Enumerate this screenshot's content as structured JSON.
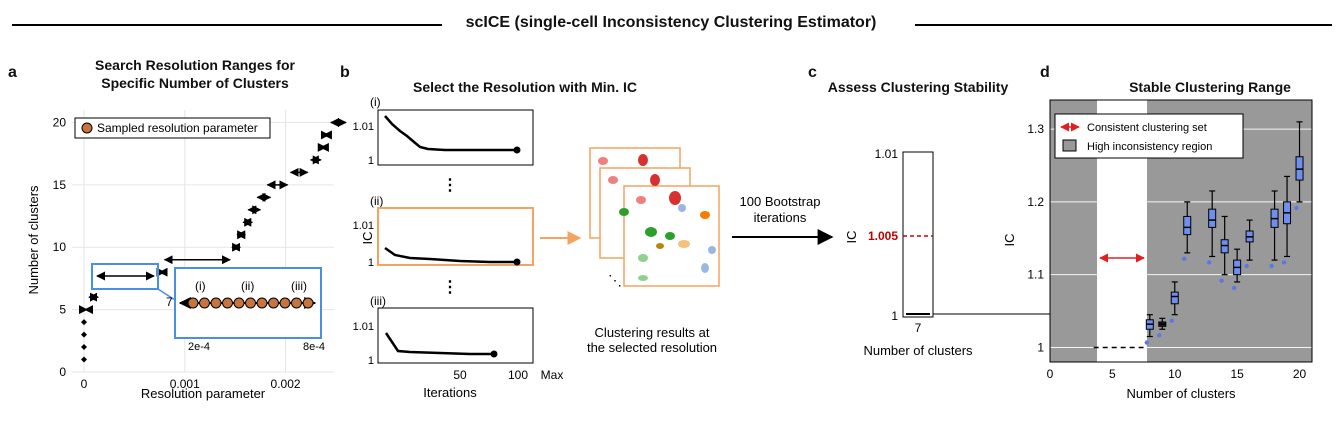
{
  "header": {
    "title": "scICE (single-cell Inconsistency Clustering Estimator)"
  },
  "panel_a": {
    "letter": "a",
    "title_line1": "Search Resolution Ranges for",
    "title_line2": "Specific Number of Clusters",
    "legend": "Sampled resolution parameter",
    "xlabel": "Resolution parameter",
    "ylabel": "Number of clusters",
    "xticks": [
      "0",
      "0.001",
      "0.002"
    ],
    "yticks": [
      "0",
      "5",
      "10",
      "15",
      "20"
    ],
    "inset": {
      "y_label": "7",
      "labels": [
        "(i)",
        "(ii)",
        "(iii)"
      ],
      "x_left": "2e-4",
      "x_right": "8e-4"
    },
    "chart_data": {
      "type": "scatter",
      "xlabel": "Resolution parameter",
      "ylabel": "Number of clusters",
      "xlim": [
        0,
        0.0026
      ],
      "ylim": [
        0,
        21
      ],
      "ranges": [
        {
          "k": 1,
          "x0": 0.0,
          "x1": 0.0
        },
        {
          "k": 2,
          "x0": 0.0,
          "x1": 0.0
        },
        {
          "k": 3,
          "x0": 0.0,
          "x1": 0.0
        },
        {
          "k": 4,
          "x0": 0.0,
          "x1": 0.0
        },
        {
          "k": 5,
          "x0": 1e-05,
          "x1": 3e-05
        },
        {
          "k": 6,
          "x0": 5e-05,
          "x1": 0.00014
        },
        {
          "k": 7,
          "x0": 0.0002,
          "x1": 0.0008
        },
        {
          "k": 8,
          "x0": 0.00075,
          "x1": 0.0008
        },
        {
          "k": 9,
          "x0": 0.0008,
          "x1": 0.00145
        },
        {
          "k": 10,
          "x0": 0.00147,
          "x1": 0.00155
        },
        {
          "k": 11,
          "x0": 0.00152,
          "x1": 0.0016
        },
        {
          "k": 12,
          "x0": 0.00158,
          "x1": 0.00167
        },
        {
          "k": 13,
          "x0": 0.00163,
          "x1": 0.00175
        },
        {
          "k": 14,
          "x0": 0.00172,
          "x1": 0.00185
        },
        {
          "k": 15,
          "x0": 0.00182,
          "x1": 0.00202
        },
        {
          "k": 16,
          "x0": 0.00205,
          "x1": 0.00222
        },
        {
          "k": 17,
          "x0": 0.00225,
          "x1": 0.00235
        },
        {
          "k": 18,
          "x0": 0.00235,
          "x1": 0.0024
        },
        {
          "k": 19,
          "x0": 0.00238,
          "x1": 0.00243
        },
        {
          "k": 20,
          "x0": 0.00245,
          "x1": 0.0026
        }
      ]
    }
  },
  "panel_b": {
    "letter": "b",
    "title": "Select the Resolution with Min. IC",
    "ylabel": "IC",
    "xlabel": "Iterations",
    "subplots": [
      "(i)",
      "(ii)",
      "(iii)"
    ],
    "yticks_i": [
      "1.01",
      "1"
    ],
    "yticks_ii": [
      "1.01",
      "1"
    ],
    "yticks_iii": [
      "1.01",
      "1"
    ],
    "xticks": [
      "50",
      "100",
      "Max"
    ],
    "caption_line1": "Clustering results at",
    "caption_line2": "the selected resolution",
    "arrow_line1": "100 Bootstrap",
    "arrow_line2": "iterations",
    "accent": "#f4a460"
  },
  "panel_c": {
    "letter": "c",
    "title": "Assess Clustering Stability",
    "ylabel": "IC",
    "yticks": [
      "1.01",
      "1.005",
      "1"
    ],
    "xtick": "7",
    "xlabel": "Number of clusters",
    "highlight_color": "#c00000"
  },
  "panel_d": {
    "letter": "d",
    "title": "Stable Clustering Range",
    "ylabel": "IC",
    "xlabel": "Number of clusters",
    "legend_arrow": "Consistent clustering set",
    "legend_box": "High inconsistency region",
    "xticks": [
      "0",
      "5",
      "10",
      "15",
      "20"
    ],
    "yticks": [
      "1",
      "1.1",
      "1.2",
      "1.3"
    ],
    "colors": {
      "background": "#999999",
      "box": "#6f8ff0",
      "arrow": "#e02020"
    },
    "chart_data": {
      "type": "box",
      "xlabel": "Number of clusters",
      "ylabel": "IC",
      "xlim": [
        0,
        21
      ],
      "ylim": [
        0.98,
        1.34
      ],
      "consistent_range": [
        4,
        7
      ],
      "series": [
        {
          "k": 8,
          "q1": 1.025,
          "median": 1.032,
          "q3": 1.038,
          "lo": 1.015,
          "hi": 1.045,
          "color": "blue"
        },
        {
          "k": 9,
          "q1": 1.029,
          "median": 1.032,
          "q3": 1.035,
          "lo": 1.025,
          "hi": 1.04,
          "color": "black"
        },
        {
          "k": 10,
          "q1": 1.06,
          "median": 1.07,
          "q3": 1.076,
          "lo": 1.045,
          "hi": 1.09,
          "color": "blue"
        },
        {
          "k": 11,
          "q1": 1.155,
          "median": 1.165,
          "q3": 1.18,
          "lo": 1.13,
          "hi": 1.2,
          "color": "blue"
        },
        {
          "k": 13,
          "q1": 1.165,
          "median": 1.175,
          "q3": 1.19,
          "lo": 1.125,
          "hi": 1.215,
          "color": "blue"
        },
        {
          "k": 14,
          "q1": 1.13,
          "median": 1.14,
          "q3": 1.148,
          "lo": 1.1,
          "hi": 1.18,
          "color": "blue"
        },
        {
          "k": 15,
          "q1": 1.1,
          "median": 1.11,
          "q3": 1.12,
          "lo": 1.09,
          "hi": 1.135,
          "color": "blue"
        },
        {
          "k": 16,
          "q1": 1.145,
          "median": 1.152,
          "q3": 1.16,
          "lo": 1.12,
          "hi": 1.175,
          "color": "blue"
        },
        {
          "k": 18,
          "q1": 1.165,
          "median": 1.177,
          "q3": 1.19,
          "lo": 1.12,
          "hi": 1.215,
          "color": "blue"
        },
        {
          "k": 19,
          "q1": 1.17,
          "median": 1.185,
          "q3": 1.2,
          "lo": 1.125,
          "hi": 1.235,
          "color": "blue"
        },
        {
          "k": 20,
          "q1": 1.23,
          "median": 1.245,
          "q3": 1.262,
          "lo": 1.2,
          "hi": 1.31,
          "color": "blue"
        }
      ],
      "baseline": {
        "x0": 3.5,
        "x1": 7.5,
        "y": 1.0
      }
    }
  }
}
